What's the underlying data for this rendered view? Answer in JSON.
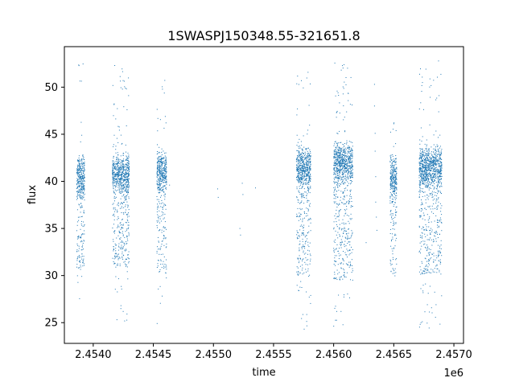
{
  "chart_data": {
    "type": "scatter",
    "title": "1SWASPJ150348.55-321651.8",
    "xlabel": "time",
    "ylabel": "flux",
    "x_offset_label": "1e6",
    "xlim": [
      2453760,
      2457080
    ],
    "ylim": [
      22.8,
      54.3
    ],
    "x_ticks": [
      {
        "value": 2454000,
        "label": "2.4540"
      },
      {
        "value": 2454500,
        "label": "2.4545"
      },
      {
        "value": 2455000,
        "label": "2.4550"
      },
      {
        "value": 2455500,
        "label": "2.4555"
      },
      {
        "value": 2456000,
        "label": "2.4560"
      },
      {
        "value": 2456500,
        "label": "2.4565"
      },
      {
        "value": 2457000,
        "label": "2.4570"
      }
    ],
    "y_ticks": [
      {
        "value": 25,
        "label": "25"
      },
      {
        "value": 30,
        "label": "30"
      },
      {
        "value": 35,
        "label": "35"
      },
      {
        "value": 40,
        "label": "40"
      },
      {
        "value": 45,
        "label": "45"
      },
      {
        "value": 50,
        "label": "50"
      }
    ],
    "grid": false,
    "marker_color": "#1f77b4",
    "series": [
      {
        "seasons": [
          {
            "x_start": 2453862,
            "x_end": 2453930,
            "y_low": 30.8,
            "y_high": 42.0,
            "y_min": 26.6,
            "y_max": 52.9
          },
          {
            "x_start": 2454160,
            "x_end": 2454300,
            "y_low": 30.8,
            "y_high": 42.3,
            "y_min": 24.7,
            "y_max": 52.4
          },
          {
            "x_start": 2454530,
            "x_end": 2454610,
            "y_low": 30.2,
            "y_high": 42.5,
            "y_min": 24.4,
            "y_max": 52.4
          },
          {
            "x_start": 2455690,
            "x_end": 2455810,
            "y_low": 30.0,
            "y_high": 43.0,
            "y_min": 24.3,
            "y_max": 51.7
          },
          {
            "x_start": 2456000,
            "x_end": 2456160,
            "y_low": 29.5,
            "y_high": 43.5,
            "y_min": 24.6,
            "y_max": 53.2
          },
          {
            "x_start": 2456470,
            "x_end": 2456525,
            "y_low": 31.5,
            "y_high": 42.0,
            "y_min": 29.9,
            "y_max": 46.5
          },
          {
            "x_start": 2456710,
            "x_end": 2456900,
            "y_low": 30.0,
            "y_high": 43.0,
            "y_min": 24.2,
            "y_max": 52.9
          }
        ],
        "sparse_points": [
          {
            "x": 2454635,
            "y": 39.6
          },
          {
            "x": 2455035,
            "y": 39.2
          },
          {
            "x": 2455040,
            "y": 38.3
          },
          {
            "x": 2455220,
            "y": 35.0
          },
          {
            "x": 2455225,
            "y": 34.3
          },
          {
            "x": 2455240,
            "y": 39.8
          },
          {
            "x": 2455245,
            "y": 38.6
          },
          {
            "x": 2455350,
            "y": 39.3
          },
          {
            "x": 2456340,
            "y": 50.3
          },
          {
            "x": 2456340,
            "y": 48.0
          },
          {
            "x": 2456345,
            "y": 45.1
          },
          {
            "x": 2456345,
            "y": 43.2
          },
          {
            "x": 2456350,
            "y": 40.5
          },
          {
            "x": 2456350,
            "y": 37.8
          },
          {
            "x": 2456355,
            "y": 36.2
          },
          {
            "x": 2456360,
            "y": 34.8
          },
          {
            "x": 2456270,
            "y": 33.5
          }
        ]
      }
    ]
  }
}
